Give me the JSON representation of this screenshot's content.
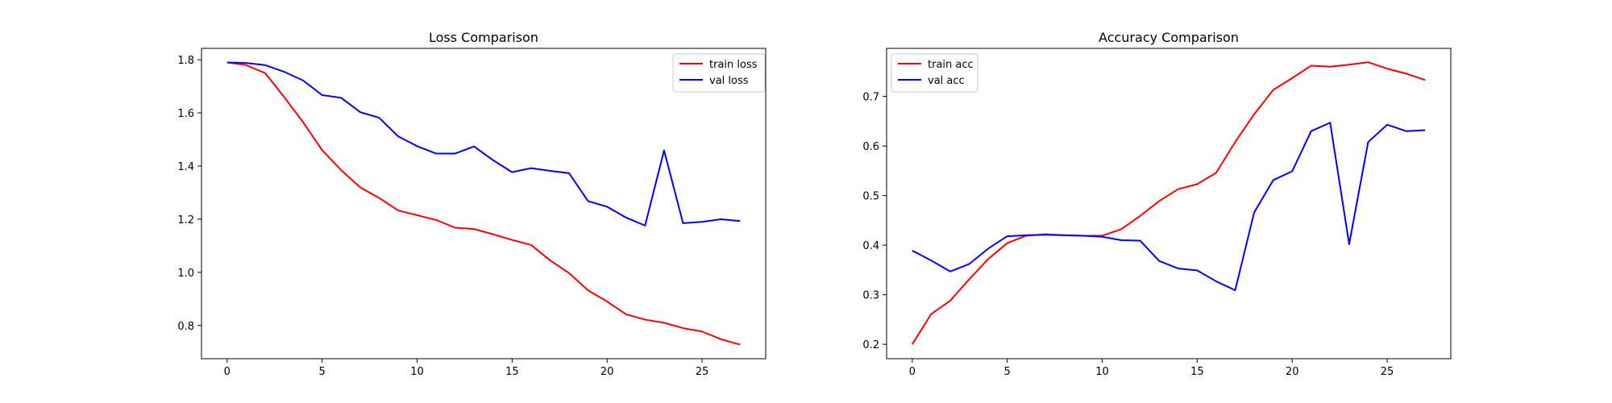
{
  "chart_data": [
    {
      "type": "line",
      "title": "Loss Comparison",
      "xlabel": "",
      "ylabel": "",
      "xlim": [
        -1.35,
        28.35
      ],
      "ylim": [
        0.675,
        1.843
      ],
      "xticks": [
        0,
        5,
        10,
        15,
        20,
        25
      ],
      "yticks": [
        0.8,
        1.0,
        1.2,
        1.4,
        1.6,
        1.8
      ],
      "x_tick_labels": [
        "0",
        "5",
        "10",
        "15",
        "20",
        "25"
      ],
      "y_tick_labels": [
        "0.8",
        "1.0",
        "1.2",
        "1.4",
        "1.6",
        "1.8"
      ],
      "grid": false,
      "legend": "top-right",
      "x": [
        0,
        1,
        2,
        3,
        4,
        5,
        6,
        7,
        8,
        9,
        10,
        11,
        12,
        13,
        14,
        15,
        16,
        17,
        18,
        19,
        20,
        21,
        22,
        23,
        24,
        25,
        26,
        27
      ],
      "series": [
        {
          "name": "train loss",
          "color": "#ff0000",
          "values": [
            1.79,
            1.78,
            1.75,
            1.66,
            1.565,
            1.46,
            1.385,
            1.32,
            1.28,
            1.233,
            1.215,
            1.197,
            1.168,
            1.163,
            1.143,
            1.122,
            1.103,
            1.045,
            0.997,
            0.932,
            0.89,
            0.842,
            0.822,
            0.81,
            0.79,
            0.777,
            0.748,
            0.728
          ]
        },
        {
          "name": "val loss",
          "color": "#0000ff",
          "values": [
            1.79,
            1.788,
            1.78,
            1.755,
            1.722,
            1.667,
            1.657,
            1.603,
            1.582,
            1.512,
            1.475,
            1.447,
            1.447,
            1.474,
            1.422,
            1.377,
            1.392,
            1.382,
            1.373,
            1.268,
            1.247,
            1.206,
            1.176,
            1.459,
            1.185,
            1.19,
            1.2,
            1.193
          ]
        }
      ]
    },
    {
      "type": "line",
      "title": "Accuracy Comparison",
      "xlabel": "",
      "ylabel": "",
      "xlim": [
        -1.35,
        28.35
      ],
      "ylim": [
        0.171,
        0.797
      ],
      "xticks": [
        0,
        5,
        10,
        15,
        20,
        25
      ],
      "yticks": [
        0.2,
        0.3,
        0.4,
        0.5,
        0.6,
        0.7
      ],
      "x_tick_labels": [
        "0",
        "5",
        "10",
        "15",
        "20",
        "25"
      ],
      "y_tick_labels": [
        "0.2",
        "0.3",
        "0.4",
        "0.5",
        "0.6",
        "0.7"
      ],
      "grid": false,
      "legend": "top-left",
      "x": [
        0,
        1,
        2,
        3,
        4,
        5,
        6,
        7,
        8,
        9,
        10,
        11,
        12,
        13,
        14,
        15,
        16,
        17,
        18,
        19,
        20,
        21,
        22,
        23,
        24,
        25,
        26,
        27
      ],
      "series": [
        {
          "name": "train acc",
          "color": "#ff0000",
          "values": [
            0.2,
            0.261,
            0.288,
            0.331,
            0.372,
            0.404,
            0.419,
            0.422,
            0.42,
            0.419,
            0.419,
            0.432,
            0.459,
            0.489,
            0.513,
            0.523,
            0.546,
            0.608,
            0.664,
            0.713,
            0.737,
            0.762,
            0.76,
            0.764,
            0.769,
            0.756,
            0.746,
            0.733
          ]
        },
        {
          "name": "val acc",
          "color": "#0000ff",
          "values": [
            0.389,
            0.369,
            0.347,
            0.362,
            0.393,
            0.418,
            0.42,
            0.421,
            0.42,
            0.419,
            0.417,
            0.41,
            0.409,
            0.368,
            0.353,
            0.349,
            0.327,
            0.309,
            0.466,
            0.531,
            0.549,
            0.63,
            0.647,
            0.402,
            0.608,
            0.643,
            0.63,
            0.632
          ]
        }
      ]
    }
  ]
}
